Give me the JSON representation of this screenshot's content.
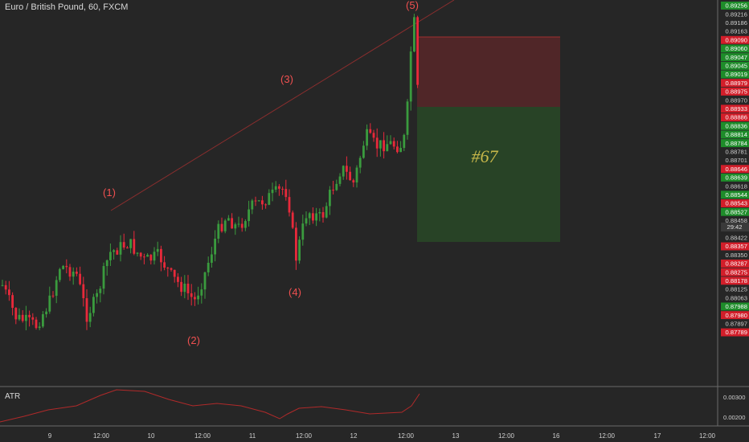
{
  "chart_data": {
    "type": "candlestick",
    "symbol": "Euro / British Pound, 60, FXCM",
    "price_range": [
      0.8771,
      0.8928
    ],
    "price_axis_labels": [
      {
        "v": 0.89256,
        "c": "g"
      },
      {
        "v": 0.89216,
        "c": "n"
      },
      {
        "v": 0.89186,
        "c": "n"
      },
      {
        "v": 0.89163,
        "c": "n"
      },
      {
        "v": 0.8909,
        "c": "r"
      },
      {
        "v": 0.8906,
        "c": "g"
      },
      {
        "v": 0.89047,
        "c": "g"
      },
      {
        "v": 0.89045,
        "c": "g"
      },
      {
        "v": 0.89019,
        "c": "g"
      },
      {
        "v": 0.88979,
        "c": "r"
      },
      {
        "v": 0.88975,
        "c": "r"
      },
      {
        "v": 0.8897,
        "c": "n"
      },
      {
        "v": 0.88933,
        "c": "r"
      },
      {
        "v": 0.88886,
        "c": "r"
      },
      {
        "v": 0.88836,
        "c": "g"
      },
      {
        "v": 0.88814,
        "c": "g"
      },
      {
        "v": 0.88784,
        "c": "g"
      },
      {
        "v": 0.88781,
        "c": "n"
      },
      {
        "v": 0.88701,
        "c": "n"
      },
      {
        "v": 0.88646,
        "c": "r"
      },
      {
        "v": 0.88639,
        "c": "g"
      },
      {
        "v": 0.88618,
        "c": "n"
      },
      {
        "v": 0.88544,
        "c": "g"
      },
      {
        "v": 0.88543,
        "c": "r"
      },
      {
        "v": 0.88527,
        "c": "g"
      },
      {
        "v": 0.88458,
        "c": "n"
      },
      {
        "v": 0.88454,
        "c": "n"
      },
      {
        "v": 0.88422,
        "c": "n"
      },
      {
        "v": 0.88357,
        "c": "r"
      },
      {
        "v": 0.8835,
        "c": "n"
      },
      {
        "v": 0.88287,
        "c": "r"
      },
      {
        "v": 0.88275,
        "c": "r"
      },
      {
        "v": 0.88178,
        "c": "r"
      },
      {
        "v": 0.88125,
        "c": "n"
      },
      {
        "v": 0.88063,
        "c": "n"
      },
      {
        "v": 0.87988,
        "c": "g"
      },
      {
        "v": 0.8798,
        "c": "r"
      },
      {
        "v": 0.87897,
        "c": "n"
      },
      {
        "v": 0.87789,
        "c": "r"
      }
    ],
    "countdown": "29:42",
    "time_axis_labels": [
      "9",
      "12:00",
      "10",
      "12:00",
      "11",
      "12:00",
      "12",
      "12:00",
      "13",
      "12:00",
      "16",
      "12:00",
      "17",
      "12:00"
    ],
    "wave_labels": [
      "(1)",
      "(2)",
      "(3)",
      "(4)",
      "(5)"
    ],
    "position_label": "#67",
    "atr_label": "ATR",
    "atr_axis_labels": [
      "0.00300",
      "0.00200"
    ],
    "colors": {
      "background": "#262626",
      "up": "#3a9b3e",
      "down": "#e8293a",
      "wave_label": "#f05050",
      "risk_zone": "rgba(150,40,45,0.38)",
      "reward_zone": "rgba(45,105,40,0.45)",
      "position_text": "#c8b84a",
      "atr_line": "#b02a2a"
    }
  }
}
